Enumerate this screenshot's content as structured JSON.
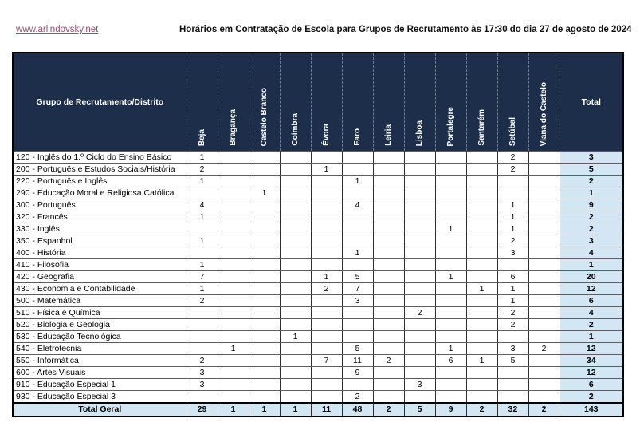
{
  "header": {
    "link_label": "www.arlindovsky.net",
    "title": "Horários em Contratação de Escola para Grupos de Recrutamento às 17:30 do dia 27 de agosto de 2024"
  },
  "colors": {
    "header_bg": "#1c2e4a",
    "header_text": "#ffffff",
    "total_bg": "#d2e7f3",
    "link": "#954F72",
    "outer_border": "#000000"
  },
  "chart_data": {
    "type": "table",
    "corner_label": "Grupo de Recrutamento/Distrito",
    "total_header": "Total",
    "districts": [
      "Beja",
      "Bragança",
      "Castelo Branco",
      "Coimbra",
      "Évora",
      "Faro",
      "Leiria",
      "Lisboa",
      "Portalegre",
      "Santarém",
      "Setúbal",
      "Viana do Castelo"
    ],
    "rows": [
      {
        "label": "120 - Inglês do 1.º Ciclo do Ensino Básico",
        "values": [
          "1",
          "",
          "",
          "",
          "",
          "",
          "",
          "",
          "",
          "",
          "2",
          ""
        ],
        "total": "3"
      },
      {
        "label": "200 - Português e Estudos Sociais/História",
        "values": [
          "2",
          "",
          "",
          "",
          "1",
          "",
          "",
          "",
          "",
          "",
          "2",
          ""
        ],
        "total": "5"
      },
      {
        "label": "220 - Português e Inglês",
        "values": [
          "1",
          "",
          "",
          "",
          "",
          "1",
          "",
          "",
          "",
          "",
          "",
          ""
        ],
        "total": "2"
      },
      {
        "label": "290 - Educação Moral e Religiosa Católica",
        "values": [
          "",
          "",
          "1",
          "",
          "",
          "",
          "",
          "",
          "",
          "",
          "",
          ""
        ],
        "total": "1"
      },
      {
        "label": "300 - Português",
        "values": [
          "4",
          "",
          "",
          "",
          "",
          "4",
          "",
          "",
          "",
          "",
          "1",
          ""
        ],
        "total": "9"
      },
      {
        "label": "320 - Francês",
        "values": [
          "1",
          "",
          "",
          "",
          "",
          "",
          "",
          "",
          "",
          "",
          "1",
          ""
        ],
        "total": "2"
      },
      {
        "label": "330 - Inglês",
        "values": [
          "",
          "",
          "",
          "",
          "",
          "",
          "",
          "",
          "1",
          "",
          "1",
          ""
        ],
        "total": "2"
      },
      {
        "label": "350 - Espanhol",
        "values": [
          "1",
          "",
          "",
          "",
          "",
          "",
          "",
          "",
          "",
          "",
          "2",
          ""
        ],
        "total": "3"
      },
      {
        "label": "400 - História",
        "values": [
          "",
          "",
          "",
          "",
          "",
          "1",
          "",
          "",
          "",
          "",
          "3",
          ""
        ],
        "total": "4"
      },
      {
        "label": "410 - Filosofia",
        "values": [
          "1",
          "",
          "",
          "",
          "",
          "",
          "",
          "",
          "",
          "",
          "",
          ""
        ],
        "total": "1"
      },
      {
        "label": "420 - Geografia",
        "values": [
          "7",
          "",
          "",
          "",
          "1",
          "5",
          "",
          "",
          "1",
          "",
          "6",
          ""
        ],
        "total": "20"
      },
      {
        "label": "430 - Economia e Contabilidade",
        "values": [
          "1",
          "",
          "",
          "",
          "2",
          "7",
          "",
          "",
          "",
          "1",
          "1",
          ""
        ],
        "total": "12"
      },
      {
        "label": "500 - Matemática",
        "values": [
          "2",
          "",
          "",
          "",
          "",
          "3",
          "",
          "",
          "",
          "",
          "1",
          ""
        ],
        "total": "6"
      },
      {
        "label": "510 - Física e Química",
        "values": [
          "",
          "",
          "",
          "",
          "",
          "",
          "",
          "2",
          "",
          "",
          "2",
          ""
        ],
        "total": "4"
      },
      {
        "label": "520 - Biologia e Geologia",
        "values": [
          "",
          "",
          "",
          "",
          "",
          "",
          "",
          "",
          "",
          "",
          "2",
          ""
        ],
        "total": "2"
      },
      {
        "label": "530 - Educação Tecnológica",
        "values": [
          "",
          "",
          "",
          "1",
          "",
          "",
          "",
          "",
          "",
          "",
          "",
          ""
        ],
        "total": "1"
      },
      {
        "label": "540 - Eletrotecnia",
        "values": [
          "",
          "1",
          "",
          "",
          "",
          "5",
          "",
          "",
          "1",
          "",
          "3",
          "2"
        ],
        "total": "12"
      },
      {
        "label": "550 - Informática",
        "values": [
          "2",
          "",
          "",
          "",
          "7",
          "11",
          "2",
          "",
          "6",
          "1",
          "5",
          ""
        ],
        "total": "34"
      },
      {
        "label": "600 - Artes Visuais",
        "values": [
          "3",
          "",
          "",
          "",
          "",
          "9",
          "",
          "",
          "",
          "",
          "",
          ""
        ],
        "total": "12"
      },
      {
        "label": "910 - Educação Especial 1",
        "values": [
          "3",
          "",
          "",
          "",
          "",
          "",
          "",
          "3",
          "",
          "",
          "",
          ""
        ],
        "total": "6"
      },
      {
        "label": "930 - Educação Especial 3",
        "values": [
          "",
          "",
          "",
          "",
          "",
          "2",
          "",
          "",
          "",
          "",
          "",
          ""
        ],
        "total": "2"
      }
    ],
    "grand_total": {
      "label": "Total Geral",
      "values": [
        "29",
        "1",
        "1",
        "1",
        "11",
        "48",
        "2",
        "5",
        "9",
        "2",
        "32",
        "2"
      ],
      "total": "143"
    }
  }
}
